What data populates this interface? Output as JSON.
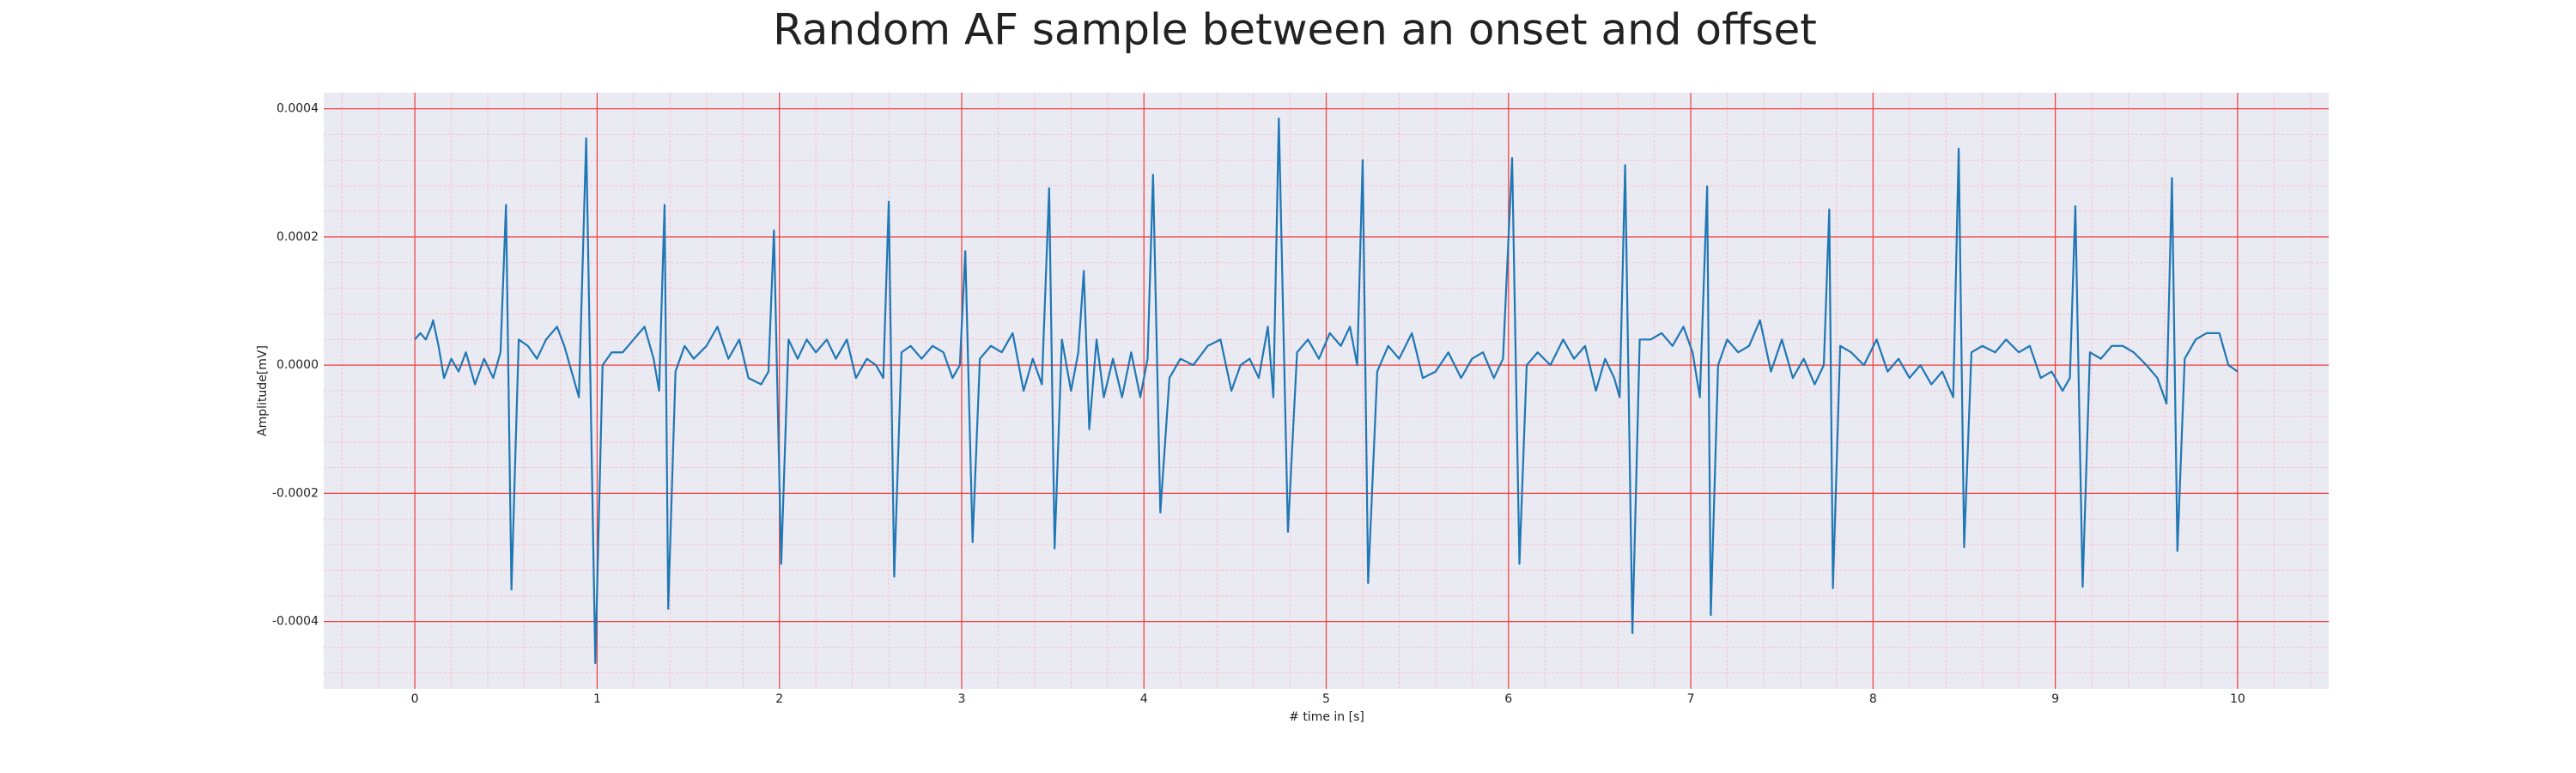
{
  "chart_data": {
    "type": "line",
    "title": "Random AF sample between an onset and offset",
    "x_label": "# time in [s]",
    "y_label": "Amplitude[mV]",
    "color": "#1f77b4",
    "grid": true,
    "minor_grid": true,
    "xlim": [
      -0.5,
      10.5
    ],
    "ylim": [
      -0.000505,
      0.000425
    ],
    "xticks": [
      0,
      1,
      2,
      3,
      4,
      5,
      6,
      7,
      8,
      9,
      10
    ],
    "yticks": [
      {
        "value": -0.0004,
        "label": "-0.0004"
      },
      {
        "value": -0.0002,
        "label": "-0.0002"
      },
      {
        "value": 0,
        "label": "0.0000"
      },
      {
        "value": 0.0002,
        "label": "0.0002"
      },
      {
        "value": 0.0004,
        "label": "0.0004"
      }
    ],
    "x": [
      0,
      0.03,
      0.06,
      0.09,
      0.1,
      0.13,
      0.16,
      0.2,
      0.24,
      0.28,
      0.33,
      0.38,
      0.43,
      0.47,
      0.5,
      0.53,
      0.57,
      0.62,
      0.67,
      0.72,
      0.78,
      0.82,
      0.86,
      0.9,
      0.94,
      0.99,
      1.03,
      1.08,
      1.14,
      1.2,
      1.26,
      1.31,
      1.34,
      1.37,
      1.39,
      1.43,
      1.48,
      1.53,
      1.6,
      1.66,
      1.72,
      1.78,
      1.83,
      1.9,
      1.94,
      1.97,
      2.01,
      2.05,
      2.1,
      2.15,
      2.2,
      2.26,
      2.31,
      2.37,
      2.42,
      2.48,
      2.53,
      2.57,
      2.6,
      2.63,
      2.67,
      2.72,
      2.78,
      2.84,
      2.9,
      2.95,
      2.99,
      3.02,
      3.06,
      3.1,
      3.16,
      3.22,
      3.28,
      3.34,
      3.39,
      3.44,
      3.48,
      3.51,
      3.55,
      3.6,
      3.64,
      3.67,
      3.7,
      3.74,
      3.78,
      3.83,
      3.88,
      3.93,
      3.98,
      4.02,
      4.05,
      4.09,
      4.14,
      4.2,
      4.27,
      4.35,
      4.42,
      4.48,
      4.53,
      4.58,
      4.63,
      4.68,
      4.71,
      4.74,
      4.79,
      4.84,
      4.9,
      4.96,
      5.02,
      5.08,
      5.13,
      5.17,
      5.2,
      5.23,
      5.28,
      5.34,
      5.4,
      5.47,
      5.53,
      5.6,
      5.67,
      5.74,
      5.8,
      5.86,
      5.92,
      5.97,
      6.02,
      6.06,
      6.1,
      6.16,
      6.23,
      6.3,
      6.36,
      6.42,
      6.48,
      6.53,
      6.58,
      6.61,
      6.64,
      6.68,
      6.72,
      6.78,
      6.84,
      6.9,
      6.96,
      7.01,
      7.05,
      7.09,
      7.11,
      7.15,
      7.2,
      7.26,
      7.32,
      7.38,
      7.44,
      7.5,
      7.56,
      7.62,
      7.68,
      7.73,
      7.76,
      7.78,
      7.82,
      7.88,
      7.95,
      8.02,
      8.08,
      8.14,
      8.2,
      8.26,
      8.32,
      8.38,
      8.44,
      8.47,
      8.5,
      8.54,
      8.6,
      8.67,
      8.73,
      8.8,
      8.86,
      8.92,
      8.98,
      9.04,
      9.08,
      9.11,
      9.15,
      9.19,
      9.25,
      9.31,
      9.37,
      9.43,
      9.5,
      9.56,
      9.61,
      9.64,
      9.67,
      9.71,
      9.77,
      9.83,
      9.9,
      9.95,
      10.0
    ],
    "values": [
      4e-05,
      5e-05,
      4e-05,
      6e-05,
      7e-05,
      3e-05,
      -2e-05,
      1e-05,
      -1e-05,
      2e-05,
      -3e-05,
      1e-05,
      -2e-05,
      2e-05,
      0.00025,
      -0.00035,
      4e-05,
      3e-05,
      1e-05,
      4e-05,
      6e-05,
      3e-05,
      -1e-05,
      -5e-05,
      0.000354,
      -0.000465,
      0.0,
      2e-05,
      2e-05,
      4e-05,
      6e-05,
      1e-05,
      -4e-05,
      0.00025,
      -0.00038,
      -1e-05,
      3e-05,
      1e-05,
      3e-05,
      6e-05,
      1e-05,
      4e-05,
      -2e-05,
      -3e-05,
      -1e-05,
      0.00021,
      -0.00031,
      4e-05,
      1e-05,
      4e-05,
      2e-05,
      4e-05,
      1e-05,
      4e-05,
      -2e-05,
      1e-05,
      0.0,
      -2e-05,
      0.000255,
      -0.00033,
      2e-05,
      3e-05,
      1e-05,
      3e-05,
      2e-05,
      -2e-05,
      0.0,
      0.000178,
      -0.000276,
      1e-05,
      3e-05,
      2e-05,
      5e-05,
      -4e-05,
      1e-05,
      -3e-05,
      0.000276,
      -0.000286,
      4e-05,
      -4e-05,
      2e-05,
      0.000147,
      -0.0001,
      4e-05,
      -5e-05,
      1e-05,
      -5e-05,
      2e-05,
      -5e-05,
      1e-05,
      0.000297,
      -0.00023,
      -2e-05,
      1e-05,
      0.0,
      3e-05,
      4e-05,
      -4e-05,
      0.0,
      1e-05,
      -2e-05,
      6e-05,
      -5e-05,
      0.000385,
      -0.00026,
      2e-05,
      4e-05,
      1e-05,
      5e-05,
      3e-05,
      6e-05,
      0.0,
      0.00032,
      -0.00034,
      -1e-05,
      3e-05,
      1e-05,
      5e-05,
      -2e-05,
      -1e-05,
      2e-05,
      -2e-05,
      1e-05,
      2e-05,
      -2e-05,
      1e-05,
      0.000323,
      -0.00031,
      0.0,
      2e-05,
      0.0,
      4e-05,
      1e-05,
      3e-05,
      -4e-05,
      1e-05,
      -2e-05,
      -5e-05,
      0.000312,
      -0.000418,
      4e-05,
      4e-05,
      5e-05,
      3e-05,
      6e-05,
      2e-05,
      -5e-05,
      0.000279,
      -0.00039,
      0.0,
      4e-05,
      2e-05,
      3e-05,
      7e-05,
      -1e-05,
      4e-05,
      -2e-05,
      1e-05,
      -3e-05,
      0.0,
      0.000243,
      -0.000348,
      3e-05,
      2e-05,
      0.0,
      4e-05,
      -1e-05,
      1e-05,
      -2e-05,
      0.0,
      -3e-05,
      -1e-05,
      -5e-05,
      0.000338,
      -0.000284,
      2e-05,
      3e-05,
      2e-05,
      4e-05,
      2e-05,
      3e-05,
      -2e-05,
      -1e-05,
      -4e-05,
      -2e-05,
      0.000248,
      -0.000346,
      2e-05,
      1e-05,
      3e-05,
      3e-05,
      2e-05,
      0.0,
      -2e-05,
      -6e-05,
      0.000292,
      -0.00029,
      1e-05,
      4e-05,
      5e-05,
      5e-05,
      0.0,
      -1e-05
    ]
  }
}
